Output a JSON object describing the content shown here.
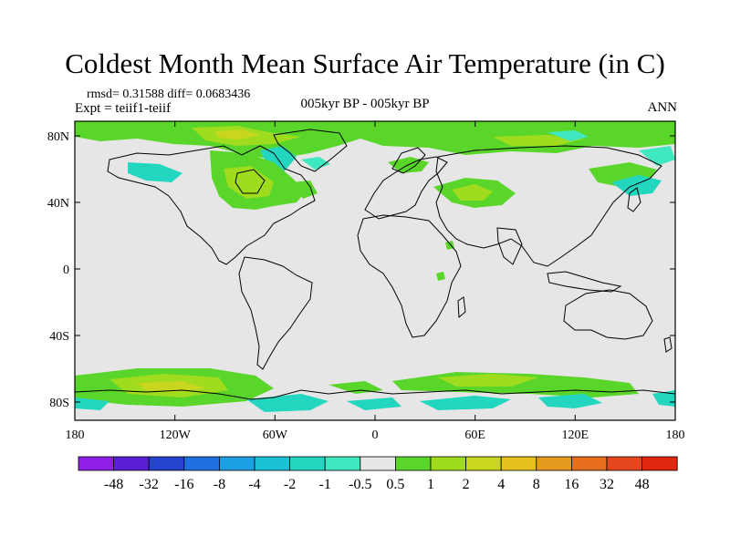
{
  "title": "Coldest Month Mean Surface Air Temperature (in C)",
  "stats_line": "rmsd= 0.31588 diff= 0.0683436",
  "experiment": "Expt = teiif1-teiif",
  "period": "005kyr BP - 005kyr BP",
  "season": "ANN",
  "lat_ticks": [
    "80N",
    "40N",
    "0",
    "40S",
    "80S"
  ],
  "lon_ticks": [
    "180",
    "120W",
    "60W",
    "0",
    "60E",
    "120E",
    "180"
  ],
  "colorbar": {
    "labels": [
      "-48",
      "-32",
      "-16",
      "-8",
      "-4",
      "-2",
      "-1",
      "-0.5",
      "0.5",
      "1",
      "2",
      "4",
      "8",
      "16",
      "32",
      "48"
    ],
    "colors": [
      "#8f1fe6",
      "#5a1fd4",
      "#2444cf",
      "#1e6fe0",
      "#1ea0e6",
      "#19c2d6",
      "#22d6c0",
      "#3fe8c0",
      "#e6e6e6",
      "#5ad62a",
      "#9fdc1e",
      "#c8d61e",
      "#e6c21e",
      "#e69a1e",
      "#e66e1e",
      "#e6461e",
      "#e0260f"
    ]
  },
  "colors": {
    "background": "#e6e6e6",
    "coast": "#000000"
  }
}
